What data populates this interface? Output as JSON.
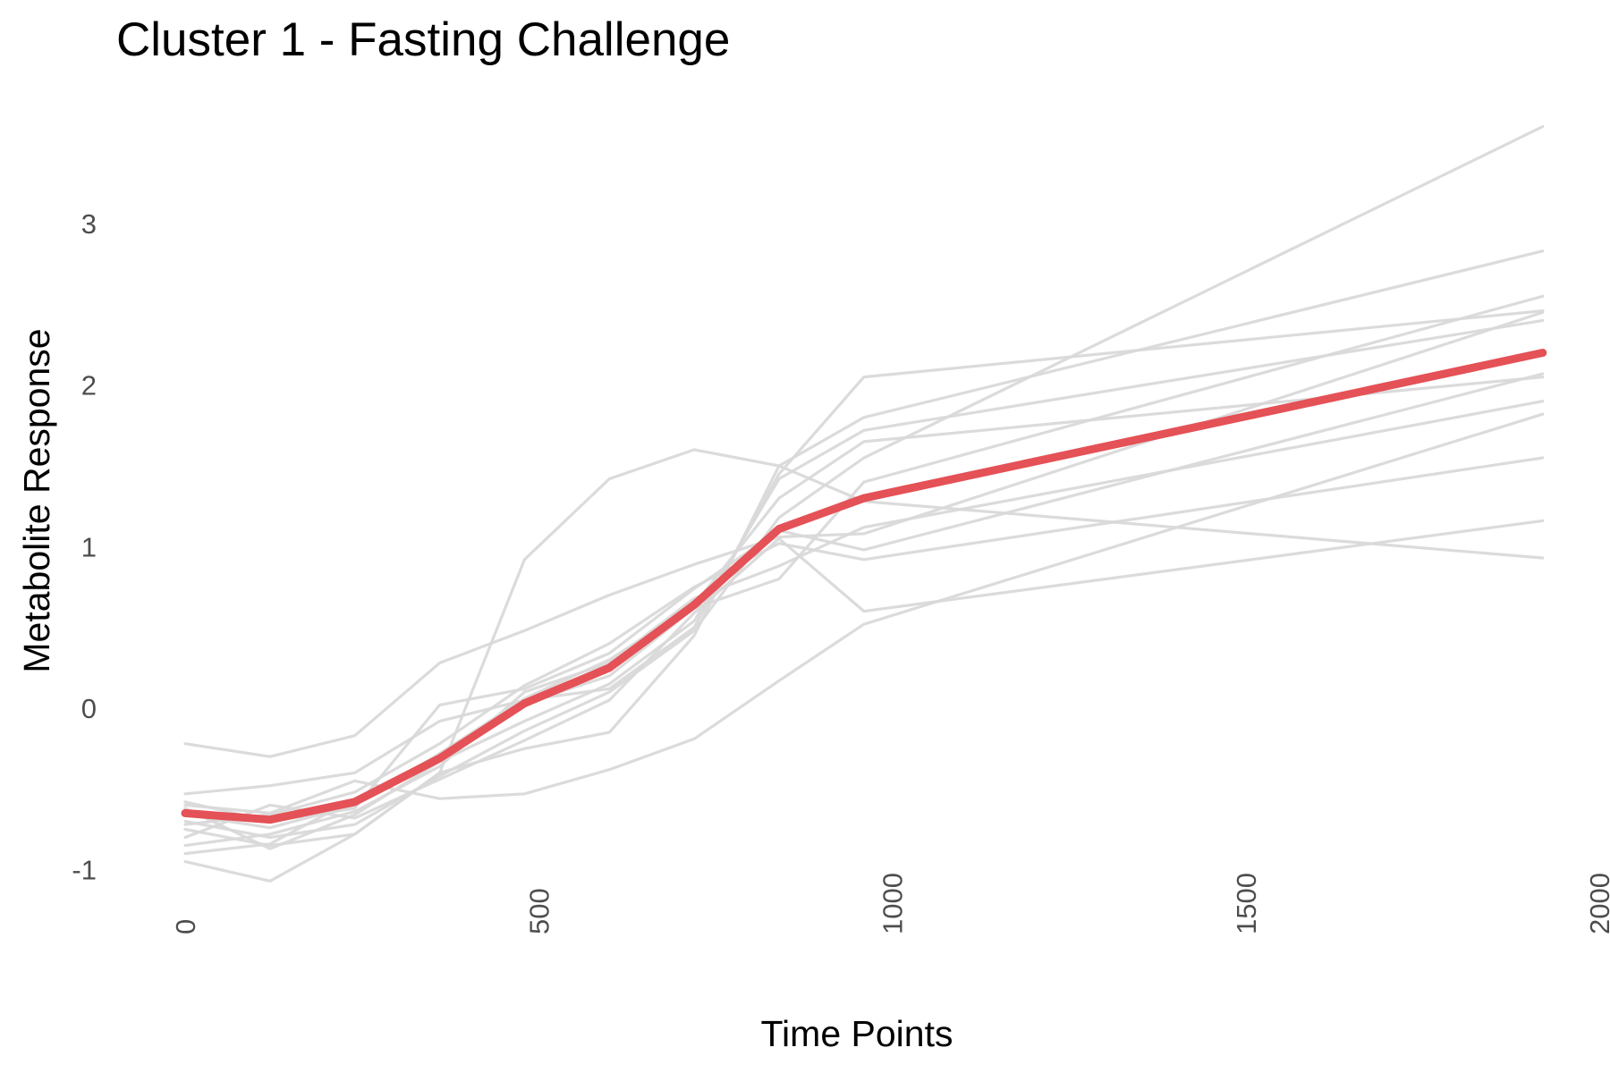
{
  "chart_data": {
    "type": "line",
    "title": "Cluster 1 - Fasting Challenge",
    "xlabel": "Time Points",
    "ylabel": "Metabolite Response",
    "xlim": [
      0,
      2000
    ],
    "ylim": [
      -1,
      3.5
    ],
    "x_ticks": [
      0,
      500,
      1000,
      1500,
      2000
    ],
    "y_ticks": [
      -1,
      0,
      1,
      2,
      3
    ],
    "x_tick_labels": [
      "0",
      "500",
      "1000",
      "1500",
      "2000"
    ],
    "y_tick_labels": [
      "-1",
      "0",
      "1",
      "2",
      "3"
    ],
    "x_tick_rotation": "vertical",
    "grid": false,
    "legend": "none",
    "colors": {
      "individual": "#d9d9d9",
      "mean": "#e45156"
    },
    "x": [
      0,
      120,
      240,
      360,
      480,
      600,
      720,
      840,
      960,
      1920
    ],
    "series": [
      {
        "role": "individual",
        "values": [
          -0.22,
          -0.3,
          -0.17,
          0.28,
          0.48,
          0.7,
          0.89,
          1.06,
          1.08,
          2.45
        ]
      },
      {
        "role": "individual",
        "values": [
          -0.53,
          -0.48,
          -0.4,
          -0.08,
          0.05,
          0.12,
          0.5,
          1.45,
          2.05,
          2.46
        ]
      },
      {
        "role": "individual",
        "values": [
          -0.6,
          -0.65,
          -0.45,
          -0.56,
          -0.53,
          -0.38,
          -0.19,
          0.17,
          0.52,
          1.82
        ]
      },
      {
        "role": "individual",
        "values": [
          -0.75,
          -0.85,
          -0.78,
          -0.4,
          0.92,
          1.42,
          1.6,
          1.5,
          1.28,
          0.93
        ]
      },
      {
        "role": "individual",
        "values": [
          -0.95,
          -1.07,
          -0.78,
          -0.4,
          -0.25,
          -0.15,
          0.45,
          1.5,
          1.8,
          2.83
        ]
      },
      {
        "role": "individual",
        "values": [
          -0.62,
          -0.87,
          -0.66,
          -0.33,
          -0.08,
          0.15,
          0.54,
          1.42,
          1.72,
          2.4
        ]
      },
      {
        "role": "individual",
        "values": [
          -0.8,
          -0.6,
          -0.68,
          -0.44,
          -0.2,
          0.05,
          0.59,
          1.05,
          0.6,
          1.16
        ]
      },
      {
        "role": "individual",
        "values": [
          -0.7,
          -0.8,
          -0.72,
          -0.42,
          -0.14,
          0.1,
          0.48,
          1.18,
          1.55,
          3.6
        ]
      },
      {
        "role": "individual",
        "values": [
          -0.85,
          -0.78,
          -0.64,
          -0.36,
          0.1,
          0.28,
          0.68,
          0.88,
          1.12,
          1.9
        ]
      },
      {
        "role": "individual",
        "values": [
          -0.58,
          -0.7,
          -0.62,
          0.02,
          0.12,
          0.34,
          0.74,
          1.1,
          0.98,
          2.07
        ]
      },
      {
        "role": "individual",
        "values": [
          -0.9,
          -0.84,
          -0.56,
          -0.3,
          0.03,
          0.2,
          0.62,
          0.8,
          1.4,
          2.55
        ]
      },
      {
        "role": "individual",
        "values": [
          -0.72,
          -0.66,
          -0.52,
          -0.22,
          0.14,
          0.4,
          0.75,
          1.02,
          0.92,
          1.55
        ]
      },
      {
        "role": "individual",
        "values": [
          -0.66,
          -0.74,
          -0.6,
          -0.28,
          0.06,
          0.3,
          0.64,
          1.3,
          1.65,
          2.05
        ]
      },
      {
        "role": "mean",
        "values": [
          -0.65,
          -0.69,
          -0.58,
          -0.31,
          0.03,
          0.25,
          0.64,
          1.11,
          1.3,
          2.2
        ]
      }
    ]
  }
}
